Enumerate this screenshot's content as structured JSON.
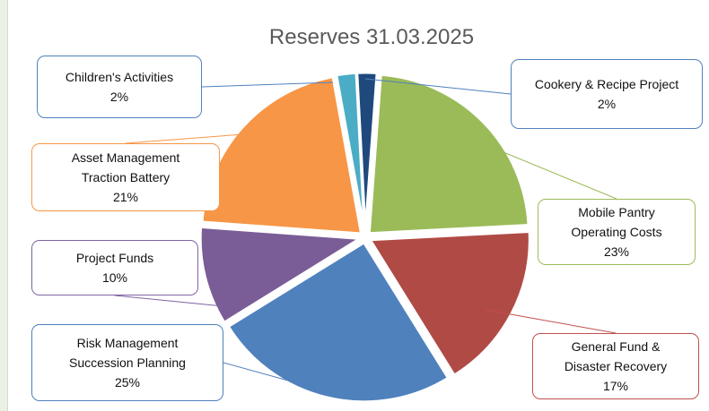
{
  "chart_data": {
    "type": "pie",
    "title": "Reserves 31.03.2025",
    "slices": [
      {
        "label_lines": [
          "Cookery & Recipe Project"
        ],
        "pct_label": "2%",
        "value": 2,
        "color": "#1f497d"
      },
      {
        "label_lines": [
          "Mobile Pantry",
          "Operating Costs"
        ],
        "pct_label": "23%",
        "value": 23,
        "color": "#9bbb59"
      },
      {
        "label_lines": [
          "General Fund  &",
          "Disaster Recovery"
        ],
        "pct_label": "17%",
        "value": 17,
        "color": "#b04a45"
      },
      {
        "label_lines": [
          "Risk Management",
          "Succession Planning"
        ],
        "pct_label": "25%",
        "value": 25,
        "color": "#4f81bd"
      },
      {
        "label_lines": [
          "Project Funds"
        ],
        "pct_label": "10%",
        "value": 10,
        "color": "#7a5c97"
      },
      {
        "label_lines": [
          "Asset Management",
          "Traction Battery"
        ],
        "pct_label": "21%",
        "value": 21,
        "color": "#f79646"
      },
      {
        "label_lines": [
          "Children's Activities"
        ],
        "pct_label": "2%",
        "value": 2,
        "color": "#4bacc6"
      }
    ],
    "legend": "callouts"
  }
}
